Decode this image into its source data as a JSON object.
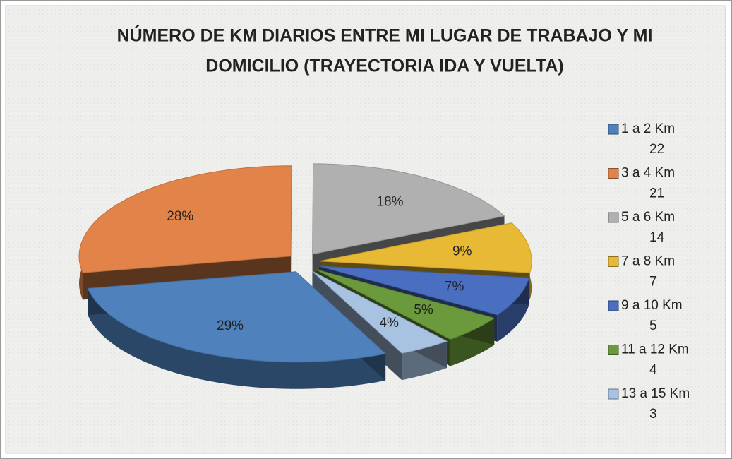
{
  "chart_data": {
    "type": "pie",
    "title": "NÚMERO DE KM DIARIOS ENTRE MI LUGAR DE TRABAJO Y MI DOMICILIO (TRAYECTORIA IDA Y VUELTA)",
    "title_lines": [
      "NÚMERO DE KM DIARIOS ENTRE MI LUGAR DE TRABAJO Y MI",
      "DOMICILIO (TRAYECTORIA IDA Y VUELTA)"
    ],
    "categories": [
      "1 a 2 Km",
      "3 a 4 Km",
      "5 a 6 Km",
      "7 a 8 Km",
      "9 a 10 Km",
      "11 a 12 Km",
      "13 a 15 Km"
    ],
    "counts": [
      22,
      21,
      14,
      7,
      5,
      4,
      3
    ],
    "values": [
      29,
      28,
      18,
      9,
      7,
      5,
      4
    ],
    "value_labels": [
      "29%",
      "28%",
      "18%",
      "9%",
      "7%",
      "5%",
      "4%"
    ],
    "colors": [
      "#4f81bd",
      "#e2844a",
      "#b0b0b0",
      "#e8b935",
      "#4a6fc0",
      "#6b9a3c",
      "#a8c2e2"
    ],
    "legend": "right"
  }
}
